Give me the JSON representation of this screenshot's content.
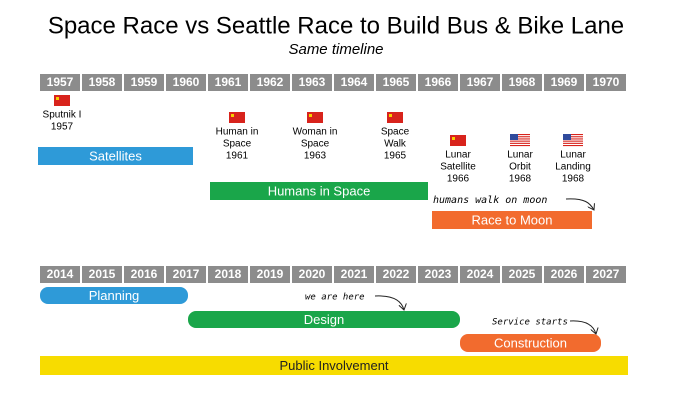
{
  "header": {
    "title": "Space Race vs Seattle Race to Build Bus & Bike Lane",
    "subtitle": "Same timeline"
  },
  "space_race": {
    "years": [
      "1957",
      "1958",
      "1959",
      "1960",
      "1961",
      "1962",
      "1963",
      "1964",
      "1965",
      "1966",
      "1967",
      "1968",
      "1969",
      "1970"
    ],
    "events": [
      {
        "flag": "ussr",
        "lines": [
          "Sputnik I",
          "1957"
        ]
      },
      {
        "flag": "ussr",
        "lines": [
          "Human in",
          "Space",
          "1961"
        ]
      },
      {
        "flag": "ussr",
        "lines": [
          "Woman in",
          "Space",
          "1963"
        ]
      },
      {
        "flag": "ussr",
        "lines": [
          "Space",
          "Walk",
          "1965"
        ]
      },
      {
        "flag": "ussr",
        "lines": [
          "Lunar",
          "Satellite",
          "1966"
        ]
      },
      {
        "flag": "usa",
        "lines": [
          "Lunar",
          "Orbit",
          "1968"
        ]
      },
      {
        "flag": "usa",
        "lines": [
          "Lunar",
          "Landing",
          "1968"
        ]
      }
    ],
    "bars": [
      {
        "label": "Satellites",
        "color": "#2e9ad8"
      },
      {
        "label": "Humans in Space",
        "color": "#1aa64a"
      },
      {
        "label": "Race to Moon",
        "color": "#f26b2e"
      }
    ],
    "annotation": "humans walk on moon"
  },
  "seattle": {
    "years": [
      "2014",
      "2015",
      "2016",
      "2017",
      "2018",
      "2019",
      "2020",
      "2021",
      "2022",
      "2023",
      "2024",
      "2025",
      "2026",
      "2027"
    ],
    "bars": [
      {
        "label": "Planning",
        "color": "#2e9ad8"
      },
      {
        "label": "Design",
        "color": "#1aa64a"
      },
      {
        "label": "Construction",
        "color": "#f26b2e"
      },
      {
        "label": "Public Involvement",
        "color": "#f7dc00"
      }
    ],
    "annotations": [
      "we are here",
      "Service starts"
    ]
  }
}
